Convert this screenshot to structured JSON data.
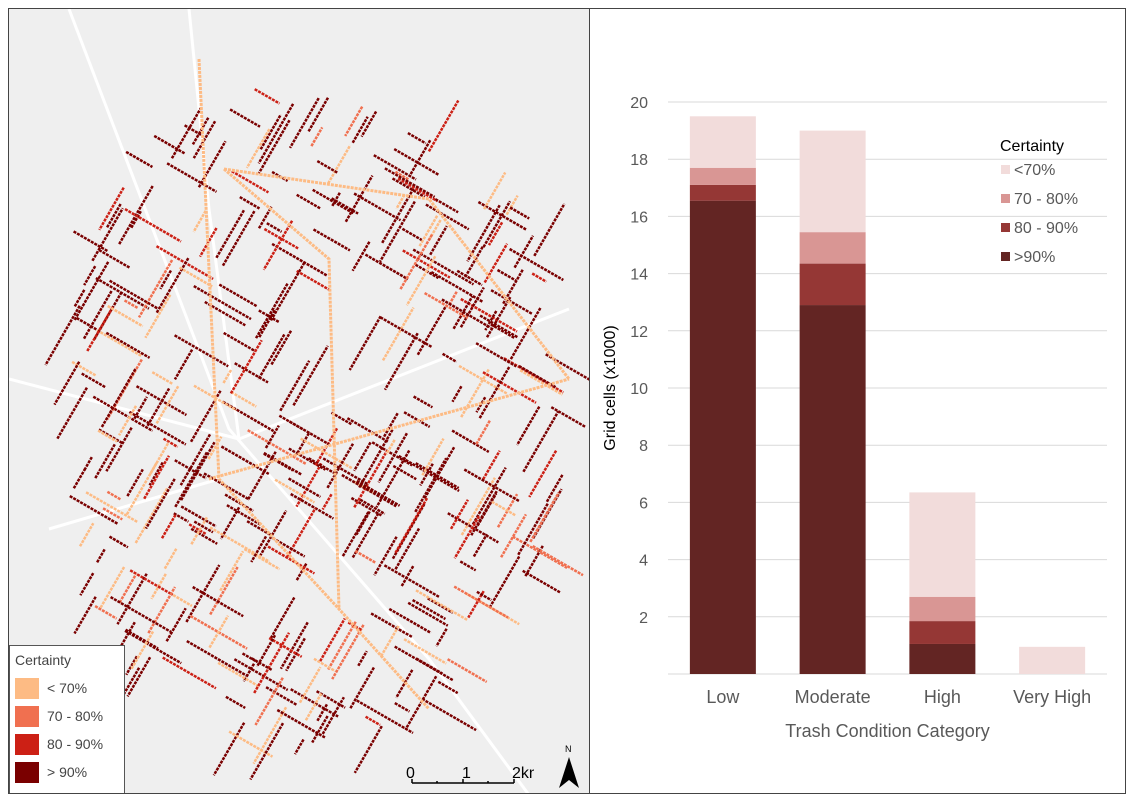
{
  "map": {
    "legend": {
      "title": "Certainty",
      "items": [
        {
          "label": "< 70%",
          "color": "#fdbb84"
        },
        {
          "label": "70 - 80%",
          "color": "#f07050"
        },
        {
          "label": "80 - 90%",
          "color": "#cc2015"
        },
        {
          "label": "> 90%",
          "color": "#7a0000"
        }
      ]
    },
    "scale": {
      "ticks": [
        "0",
        "1",
        "2km"
      ]
    },
    "north_label": "N"
  },
  "chart_data": {
    "type": "bar",
    "stacked": true,
    "categories": [
      "Low",
      "Moderate",
      "High",
      "Very High"
    ],
    "series": [
      {
        "name": ">90%",
        "color": "#632523",
        "values": [
          16.55,
          12.9,
          1.05,
          0
        ]
      },
      {
        "name": "80 - 90%",
        "color": "#953735",
        "values": [
          0.55,
          1.45,
          0.8,
          0
        ]
      },
      {
        "name": "70 - 80%",
        "color": "#d99694",
        "values": [
          0.6,
          1.1,
          0.85,
          0
        ]
      },
      {
        "name": "<70%",
        "color": "#f2dcdb",
        "values": [
          1.8,
          3.55,
          3.65,
          0.95
        ]
      }
    ],
    "xlabel": "Trash Condition Category",
    "ylabel": "Grid cells (x1000)",
    "ylim": [
      0,
      20
    ],
    "yticks": [
      2,
      4,
      6,
      8,
      10,
      12,
      14,
      16,
      18,
      20
    ],
    "grid": true,
    "legend_title": "Certainty",
    "legend_order": [
      "<70%",
      "70 - 80%",
      "80 - 90%",
      ">90%"
    ],
    "legend_placement": "top-right"
  }
}
